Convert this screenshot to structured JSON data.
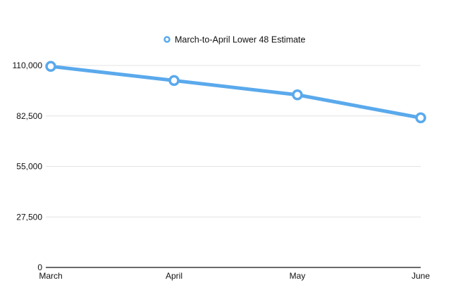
{
  "chart_data": {
    "type": "line",
    "title": "",
    "xlabel": "",
    "ylabel": "",
    "categories": [
      "March",
      "April",
      "May",
      "June"
    ],
    "series": [
      {
        "name": "March-to-April Lower 48 Estimate",
        "values": [
          109500,
          101800,
          94000,
          81500
        ]
      }
    ],
    "ylim": [
      0,
      110000
    ],
    "yticks": [
      0,
      27500,
      55000,
      82500,
      110000
    ],
    "ytick_labels": [
      "0",
      "27,500",
      "55,000",
      "82,500",
      "110,000"
    ],
    "grid": true,
    "legend_position": "top",
    "colors": {
      "series": "#5aa9ec",
      "grid": "#e3e3e3",
      "axis": "#111111"
    }
  }
}
